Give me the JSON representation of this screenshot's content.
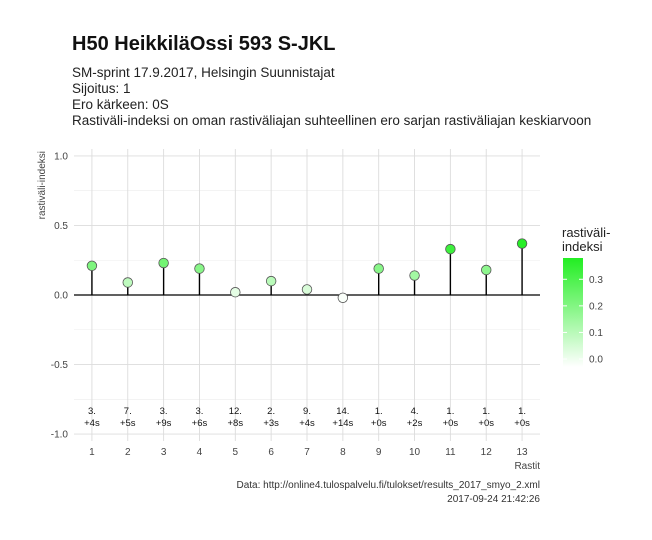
{
  "chart_data": {
    "type": "lollipop",
    "title": "H50 HeikkiläOssi 593 S-JKL",
    "subtitle_lines": [
      "SM-sprint 17.9.2017, Helsingin Suunnistajat",
      "Sijoitus: 1",
      "Ero kärkeen: 0S",
      "Rastiväli-indeksi on oman rastiväliajan suhteellinen ero sarjan rastiväliajan keskiarvoon"
    ],
    "xlabel": "Rastit",
    "ylabel": "rastiväli-indeksi",
    "x": [
      1,
      2,
      3,
      4,
      5,
      6,
      7,
      8,
      9,
      10,
      11,
      12,
      13
    ],
    "x_tick_labels": [
      "1",
      "2",
      "3",
      "4",
      "5",
      "6",
      "7",
      "8",
      "9",
      "10",
      "11",
      "12",
      "13"
    ],
    "values": [
      0.21,
      0.09,
      0.23,
      0.19,
      0.02,
      0.1,
      0.04,
      -0.02,
      0.19,
      0.14,
      0.33,
      0.18,
      0.37
    ],
    "rank_labels": [
      "3.",
      "7.",
      "3.",
      "3.",
      "12.",
      "2.",
      "9.",
      "14.",
      "1.",
      "4.",
      "1.",
      "1.",
      "1."
    ],
    "diff_labels": [
      "+4s",
      "+5s",
      "+9s",
      "+6s",
      "+8s",
      "+3s",
      "+4s",
      "+14s",
      "+0s",
      "+2s",
      "+0s",
      "+0s",
      "+0s"
    ],
    "ylim": [
      -1.05,
      1.05
    ],
    "y_ticks": [
      -1.0,
      -0.5,
      0.0,
      0.5,
      1.0
    ],
    "y_tick_labels": [
      "-1.0",
      "-0.5",
      "0.0",
      "0.5",
      "1.0"
    ],
    "grid": true,
    "legend": {
      "title": "rastiväli-\nindeksi",
      "title_lines": [
        "rastiväli-",
        "indeksi"
      ],
      "placement": "right",
      "breaks": [
        0.0,
        0.1,
        0.2,
        0.3
      ],
      "break_labels": [
        "0.0",
        "0.1",
        "0.2",
        "0.3"
      ],
      "range": [
        -0.03,
        0.38
      ],
      "color_low": "#ffffff",
      "color_high": "#22ee22"
    },
    "caption_lines": [
      "Data: http://online4.tulospalvelu.fi/tulokset/results_2017_smyo_2.xml",
      "2017-09-24 21:42:26"
    ]
  }
}
